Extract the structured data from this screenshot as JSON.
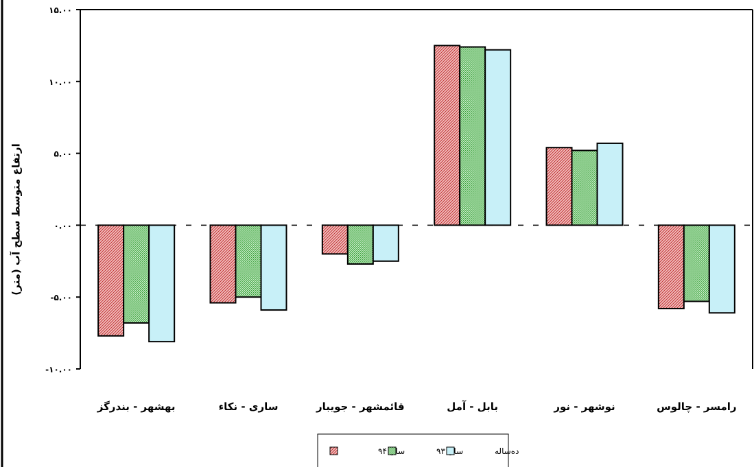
{
  "chart_data": {
    "type": "bar",
    "title": "",
    "xlabel": "",
    "ylabel": "ارتفاع متوسط سطح آب (متر)",
    "ylim": [
      -10,
      15
    ],
    "yticks": [
      "-۱۰.۰۰",
      "-۵.۰۰",
      "۰.۰۰",
      "۵.۰۰",
      "۱۰.۰۰",
      "۱۵.۰۰"
    ],
    "ytick_values": [
      -10,
      -5,
      0,
      5,
      10,
      15
    ],
    "grid": false,
    "legend_position": "bottom-center",
    "categories": [
      "بهشهر - بندرگز",
      "ساری - نکاء",
      "قائمشهر - جویبار",
      "بابل - آمل",
      "نوشهر - نور",
      "رامسر - چالوس"
    ],
    "series": [
      {
        "name": "سال ۹۴",
        "pattern": "red-hatch",
        "color": "#d94a4a",
        "values": [
          -7.7,
          -5.4,
          -2.0,
          12.5,
          5.4,
          -5.8
        ]
      },
      {
        "name": "سال ۹۳",
        "pattern": "green-dots",
        "color": "#4fb34f",
        "values": [
          -6.8,
          -5.0,
          -2.7,
          12.4,
          5.2,
          -5.3
        ]
      },
      {
        "name": "ده‌ساله",
        "pattern": "solid",
        "color": "#c8f0f8",
        "values": [
          -8.1,
          -5.9,
          -2.5,
          12.2,
          5.7,
          -6.1
        ]
      }
    ]
  }
}
